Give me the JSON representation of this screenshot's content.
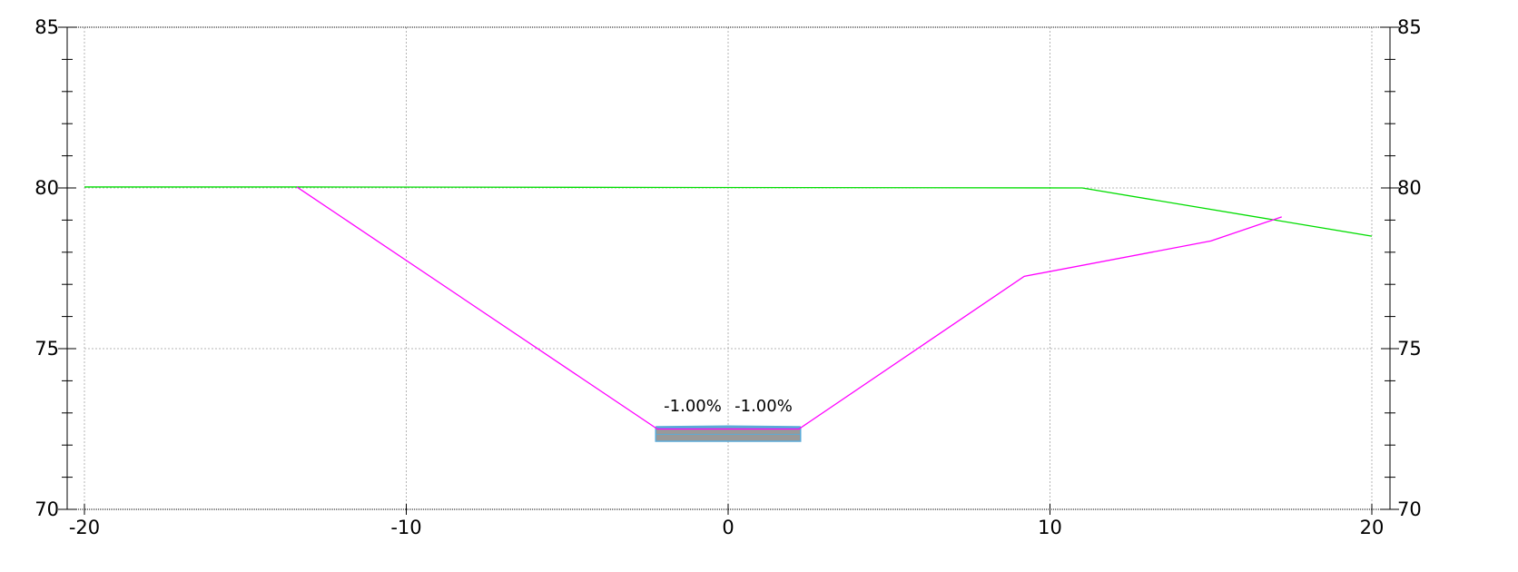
{
  "chart_data": {
    "type": "line",
    "title": "",
    "xlabel": "",
    "ylabel": "",
    "xlim": [
      -20,
      20
    ],
    "ylim": [
      70,
      85
    ],
    "x_ticks": [
      -20,
      -10,
      0,
      10,
      20
    ],
    "y_ticks": [
      70,
      75,
      80,
      85
    ],
    "x_tick_labels": [
      "-20",
      "-10",
      "0",
      "10",
      "20"
    ],
    "y_tick_labels": [
      "70",
      "75",
      "80",
      "85"
    ],
    "y_minor_step": 1,
    "grid": true,
    "right_axis": true,
    "series": [
      {
        "color": "#00dd00",
        "x": [
          -20,
          -13.4,
          11,
          20
        ],
        "y": [
          80.03,
          80.03,
          80.0,
          78.5
        ]
      },
      {
        "color": "#ff00ff",
        "x": [
          -13.4,
          -2.2,
          2.2,
          9.2,
          15,
          17.2
        ],
        "y": [
          80.03,
          72.5,
          72.5,
          77.25,
          78.35,
          79.1
        ]
      }
    ],
    "pavement": {
      "x_left": -2.25,
      "x_right": 2.25,
      "top_left": 72.55,
      "top_center": 72.57,
      "top_right": 72.55,
      "bottom": 72.12,
      "fill_color": "#999999",
      "edge_color": "#5aaad8"
    },
    "annotations": [
      {
        "text": "-1.00%",
        "x": -1.1,
        "y": 73.05
      },
      {
        "text": "-1.00%",
        "x": 1.1,
        "y": 73.05
      }
    ]
  }
}
